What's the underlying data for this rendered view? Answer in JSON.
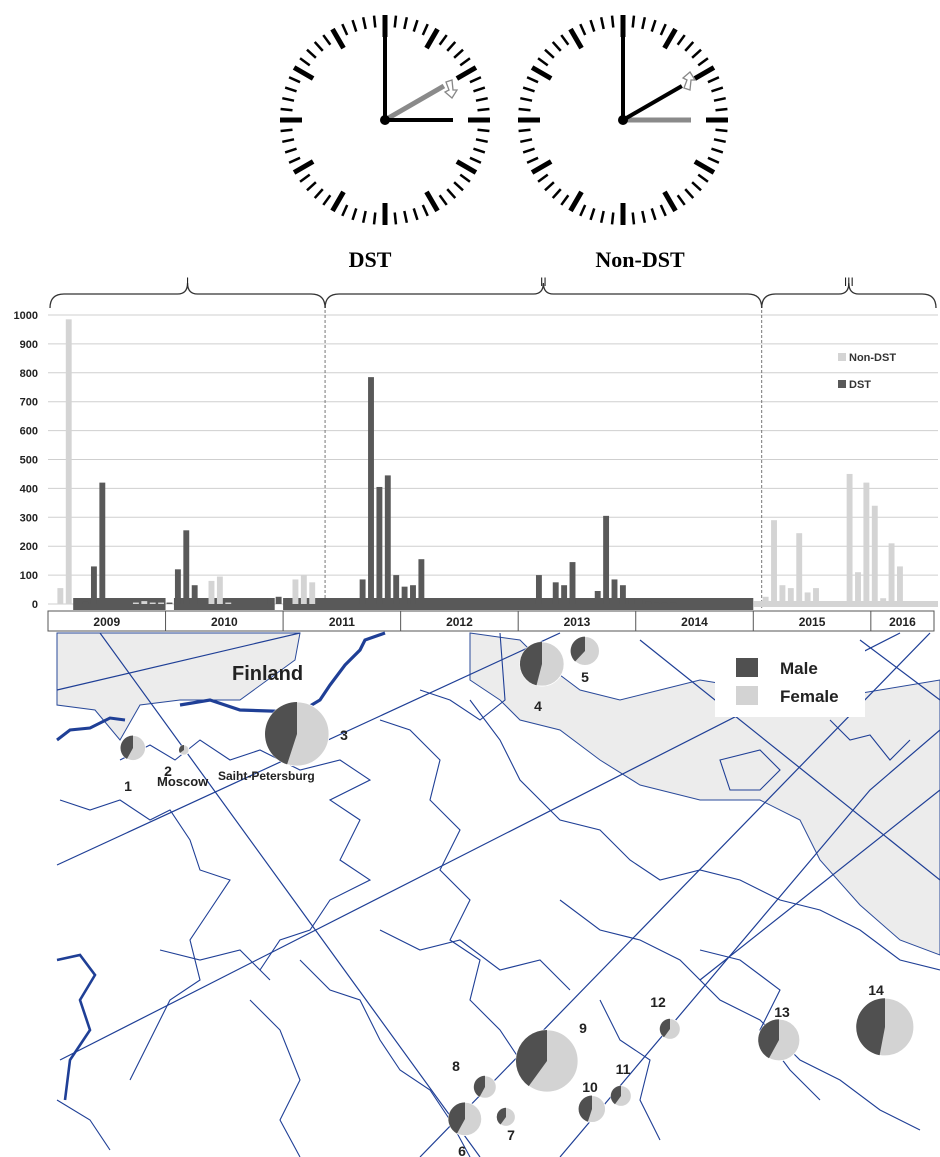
{
  "clocks": [
    {
      "label": "DST",
      "hour_angle_deg": 90,
      "minute_angle_deg": 0,
      "ghost_angle_deg": 60,
      "arrow": "down"
    },
    {
      "label": "Non-DST",
      "hour_angle_deg": 60,
      "minute_angle_deg": 0,
      "ghost_angle_deg": 90,
      "arrow": "up"
    }
  ],
  "chart_data": [
    {
      "type": "bar",
      "title": "",
      "xlabel": "",
      "ylabel": "",
      "ylim": [
        0,
        1000
      ],
      "yticks": [
        0,
        100,
        200,
        300,
        400,
        500,
        600,
        700,
        800,
        900,
        1000
      ],
      "grid": true,
      "legend": {
        "position": "top-right",
        "entries": [
          "Non-DST",
          "DST"
        ]
      },
      "periods": [
        {
          "label": "I",
          "start_bin": 0,
          "end_bin": 33
        },
        {
          "label": "II",
          "start_bin": 33,
          "end_bin": 85
        },
        {
          "label": "III",
          "start_bin": 85,
          "end_bin": 106
        }
      ],
      "years": [
        {
          "label": "2009",
          "start_bin": 0,
          "end_bin": 14
        },
        {
          "label": "2010",
          "start_bin": 14,
          "end_bin": 28
        },
        {
          "label": "2011",
          "start_bin": 28,
          "end_bin": 42
        },
        {
          "label": "2012",
          "start_bin": 42,
          "end_bin": 56
        },
        {
          "label": "2013",
          "start_bin": 56,
          "end_bin": 70
        },
        {
          "label": "2014",
          "start_bin": 70,
          "end_bin": 84
        },
        {
          "label": "2015",
          "start_bin": 84,
          "end_bin": 98
        },
        {
          "label": "2016",
          "start_bin": 98,
          "end_bin": 106
        }
      ],
      "series": [
        {
          "name": "Non-DST",
          "color": "#d4d4d4",
          "bins": [
            1,
            2,
            10,
            11,
            12,
            13,
            19,
            20,
            21,
            29,
            30,
            31,
            85,
            86,
            87,
            88,
            89,
            90,
            91,
            92,
            93,
            94,
            95,
            96,
            97,
            98,
            99,
            100,
            101,
            102,
            103,
            104,
            105
          ],
          "values": [
            55,
            985,
            5,
            10,
            5,
            5,
            80,
            95,
            5,
            85,
            100,
            75,
            25,
            290,
            65,
            55,
            245,
            40,
            55,
            10,
            5,
            5,
            450,
            110,
            420,
            340,
            20,
            210,
            130,
            5,
            5,
            5,
            5
          ]
        },
        {
          "name": "DST",
          "color": "#595959",
          "bins": [
            3,
            4,
            5,
            6,
            14,
            15,
            16,
            17,
            26,
            27,
            37,
            38,
            39,
            40,
            41,
            42,
            43,
            44,
            58,
            59,
            60,
            61,
            62,
            65,
            66,
            67,
            68,
            69,
            70,
            71,
            72,
            73,
            74
          ],
          "values": [
            15,
            10,
            130,
            420,
            5,
            120,
            255,
            65,
            20,
            25,
            85,
            785,
            405,
            445,
            100,
            60,
            65,
            155,
            100,
            15,
            75,
            65,
            145,
            45,
            305,
            85,
            65,
            20,
            15,
            10,
            5,
            5,
            5
          ],
          "baseline_bins": [
            [
              3,
              14
            ],
            [
              15,
              27
            ],
            [
              28,
              84
            ]
          ]
        }
      ]
    },
    {
      "type": "pie",
      "title": "",
      "legend": {
        "position": "top-right",
        "entries": [
          "Male",
          "Female"
        ]
      },
      "colors": {
        "Male": "#505050",
        "Female": "#d3d3d3"
      },
      "regions": [
        {
          "id": "1",
          "male_share": 0.42,
          "relative_size": 0.39
        },
        {
          "id": "2",
          "male_share": 0.35,
          "relative_size": 0.14
        },
        {
          "id": "3",
          "male_share": 0.45,
          "relative_size": 1.0
        },
        {
          "id": "4",
          "male_share": 0.46,
          "relative_size": 0.69
        },
        {
          "id": "5",
          "male_share": 0.38,
          "relative_size": 0.45
        },
        {
          "id": "6",
          "male_share": 0.42,
          "relative_size": 0.52
        },
        {
          "id": "7",
          "male_share": 0.4,
          "relative_size": 0.29
        },
        {
          "id": "8",
          "male_share": 0.42,
          "relative_size": 0.35
        },
        {
          "id": "9",
          "male_share": 0.4,
          "relative_size": 0.97
        },
        {
          "id": "10",
          "male_share": 0.45,
          "relative_size": 0.42
        },
        {
          "id": "11",
          "male_share": 0.4,
          "relative_size": 0.32
        },
        {
          "id": "12",
          "male_share": 0.4,
          "relative_size": 0.32
        },
        {
          "id": "13",
          "male_share": 0.42,
          "relative_size": 0.65
        },
        {
          "id": "14",
          "male_share": 0.47,
          "relative_size": 0.9
        }
      ]
    }
  ],
  "map": {
    "country_label": "Finland",
    "city_labels": [
      "Saiht-Petersburg",
      "Moscow"
    ]
  }
}
